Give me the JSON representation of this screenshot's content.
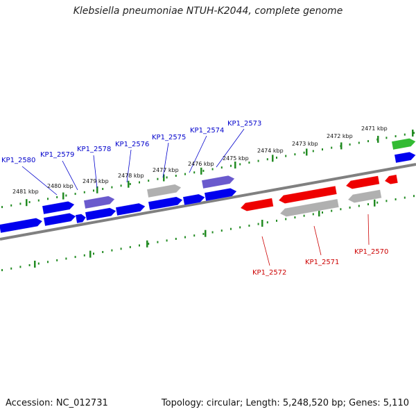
{
  "title": "Klebsiella pneumoniae NTUH-K2044, complete genome",
  "footer": {
    "accession": "Accession: NC_012731",
    "topology": "Topology: circular; Length: 5,248,520 bp; Genes: 5,110"
  },
  "colors": {
    "forward_gene": "#0000ee",
    "reverse_gene": "#ee0000",
    "purple_gene": "#6a5acd",
    "gray_gene": "#b0b0b0",
    "green_gene": "#33bb33",
    "backbone": "#808080",
    "tick": "#228b22",
    "forward_label": "#0000cc",
    "reverse_label": "#cc0000"
  },
  "scale_ticks": [
    "2481 kbp",
    "2480 kbp",
    "2479 kbp",
    "2478 kbp",
    "2477 kbp",
    "2476 kbp",
    "2475 kbp",
    "2474 kbp",
    "2473 kbp",
    "2472 kbp",
    "2471 kbp"
  ],
  "gene_labels": {
    "forward": [
      "KP1_2580",
      "KP1_2579",
      "KP1_2578",
      "KP1_2576",
      "KP1_2575",
      "KP1_2574",
      "KP1_2573"
    ],
    "reverse": [
      "KP1_2572",
      "KP1_2571",
      "KP1_2570"
    ]
  }
}
